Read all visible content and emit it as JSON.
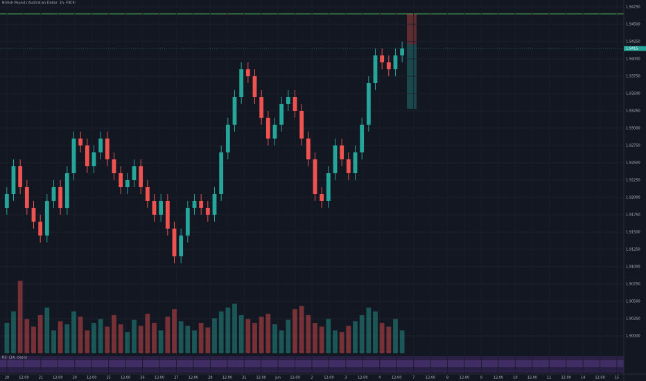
{
  "chart_data": {
    "type": "candlestick",
    "title": "British Pound / Australian Dollar, 1h, FXCM",
    "indicator": "RSI (14, close)",
    "up_color": "#26a69a",
    "down_color": "#ef5350",
    "grid": true,
    "ylim": [
      1.8975,
      1.9485
    ],
    "yticks": [
      {
        "value": 1.9,
        "label": "1.90000"
      },
      {
        "value": 1.9025,
        "label": "1.90250"
      },
      {
        "value": 1.905,
        "label": "1.90500"
      },
      {
        "value": 1.9075,
        "label": "1.90750"
      },
      {
        "value": 1.91,
        "label": "1.91000"
      },
      {
        "value": 1.9125,
        "label": "1.91250"
      },
      {
        "value": 1.915,
        "label": "1.91500"
      },
      {
        "value": 1.9175,
        "label": "1.91750"
      },
      {
        "value": 1.92,
        "label": "1.92000"
      },
      {
        "value": 1.9225,
        "label": "1.92250"
      },
      {
        "value": 1.925,
        "label": "1.92500"
      },
      {
        "value": 1.9275,
        "label": "1.92750"
      },
      {
        "value": 1.93,
        "label": "1.93000"
      },
      {
        "value": 1.9325,
        "label": "1.93250"
      },
      {
        "value": 1.935,
        "label": "1.93500"
      },
      {
        "value": 1.9375,
        "label": "1.93750"
      },
      {
        "value": 1.94,
        "label": "1.94000"
      },
      {
        "value": 1.9425,
        "label": "1.94250"
      },
      {
        "value": 1.945,
        "label": "1.94500"
      },
      {
        "value": 1.9475,
        "label": "1.94750"
      }
    ],
    "xlabels": [
      "20",
      "12:00",
      "21",
      "12:00",
      "24",
      "12:00",
      "25",
      "12:00",
      "26",
      "12:00",
      "27",
      "12:00",
      "28",
      "12:00",
      "31",
      "12:00",
      "Jun",
      "12:00",
      "2",
      "12:00",
      "3",
      "12:00",
      "4",
      "12:00",
      "7",
      "12:00",
      "8",
      "12:00",
      "9",
      "12:00",
      "10",
      "12:00",
      "11",
      "12:00",
      "14",
      "12:00",
      "15"
    ],
    "open": [
      1.9185,
      1.9205,
      1.9245,
      1.9215,
      1.9185,
      1.9165,
      1.9145,
      1.9195,
      1.9215,
      1.9185,
      1.9235,
      1.9285,
      1.9275,
      1.9245,
      1.9265,
      1.9285,
      1.9255,
      1.9235,
      1.9215,
      1.9225,
      1.9245,
      1.9215,
      1.9195,
      1.9175,
      1.9195,
      1.9155,
      1.9115,
      1.9145,
      1.9185,
      1.9195,
      1.9185,
      1.9175,
      1.9205,
      1.9265,
      1.9305,
      1.9345,
      1.9385,
      1.9375,
      1.9345,
      1.9315,
      1.9285,
      1.9305,
      1.9335,
      1.9345,
      1.9325,
      1.9285,
      1.9255,
      1.9205,
      1.9195,
      1.9235,
      1.9275,
      1.9255,
      1.9235,
      1.9265,
      1.9305,
      1.9365,
      1.9405,
      1.9395,
      1.9385,
      1.9405
    ],
    "high": [
      1.9215,
      1.9255,
      1.9255,
      1.9225,
      1.9195,
      1.9175,
      1.9205,
      1.9225,
      1.9225,
      1.9245,
      1.9295,
      1.9295,
      1.9285,
      1.9275,
      1.9295,
      1.9295,
      1.9265,
      1.9245,
      1.9235,
      1.9255,
      1.9255,
      1.9225,
      1.9205,
      1.9205,
      1.9205,
      1.9165,
      1.9155,
      1.9195,
      1.9205,
      1.9205,
      1.9195,
      1.9215,
      1.9275,
      1.9315,
      1.9355,
      1.9395,
      1.9395,
      1.9385,
      1.9355,
      1.9325,
      1.9315,
      1.9345,
      1.9355,
      1.9355,
      1.9335,
      1.9295,
      1.9265,
      1.9215,
      1.9245,
      1.9285,
      1.9285,
      1.9265,
      1.9275,
      1.9315,
      1.9375,
      1.9415,
      1.9415,
      1.9405,
      1.9415,
      1.9425
    ],
    "low": [
      1.9175,
      1.9195,
      1.9205,
      1.9175,
      1.9155,
      1.9135,
      1.9135,
      1.9185,
      1.9175,
      1.9175,
      1.9225,
      1.9265,
      1.9235,
      1.9235,
      1.9255,
      1.9245,
      1.9225,
      1.9205,
      1.9205,
      1.9215,
      1.9205,
      1.9185,
      1.9165,
      1.9165,
      1.9145,
      1.9105,
      1.9105,
      1.9135,
      1.9175,
      1.9175,
      1.9165,
      1.9165,
      1.9195,
      1.9255,
      1.9295,
      1.9335,
      1.9365,
      1.9335,
      1.9305,
      1.9275,
      1.9275,
      1.9295,
      1.9325,
      1.9315,
      1.9275,
      1.9245,
      1.9195,
      1.9185,
      1.9185,
      1.9225,
      1.9245,
      1.9225,
      1.9225,
      1.9255,
      1.9295,
      1.9355,
      1.9385,
      1.9375,
      1.9375,
      1.9395
    ],
    "close": [
      1.9205,
      1.9245,
      1.9215,
      1.9185,
      1.9165,
      1.9145,
      1.9195,
      1.9215,
      1.9185,
      1.9235,
      1.9285,
      1.9275,
      1.9245,
      1.9265,
      1.9285,
      1.9255,
      1.9235,
      1.9215,
      1.9225,
      1.9245,
      1.9215,
      1.9195,
      1.9175,
      1.9195,
      1.9155,
      1.9115,
      1.9145,
      1.9185,
      1.9195,
      1.9185,
      1.9175,
      1.9205,
      1.9265,
      1.9305,
      1.9345,
      1.9385,
      1.9375,
      1.9345,
      1.9315,
      1.9285,
      1.9305,
      1.9335,
      1.9345,
      1.9325,
      1.9285,
      1.9255,
      1.9205,
      1.9195,
      1.9235,
      1.9275,
      1.9255,
      1.9235,
      1.9265,
      1.9305,
      1.9365,
      1.9405,
      1.9395,
      1.9385,
      1.9405,
      1.9415
    ],
    "vlim": [
      0,
      100
    ],
    "volume": [
      40,
      55,
      95,
      45,
      35,
      50,
      60,
      30,
      42,
      38,
      55,
      48,
      30,
      40,
      45,
      35,
      50,
      38,
      28,
      44,
      36,
      52,
      40,
      30,
      48,
      58,
      42,
      36,
      30,
      40,
      34,
      46,
      55,
      60,
      65,
      50,
      45,
      40,
      48,
      52,
      38,
      30,
      44,
      58,
      62,
      50,
      40,
      35,
      45,
      30,
      28,
      36,
      42,
      50,
      60,
      55,
      40,
      35,
      45,
      30
    ]
  }
}
